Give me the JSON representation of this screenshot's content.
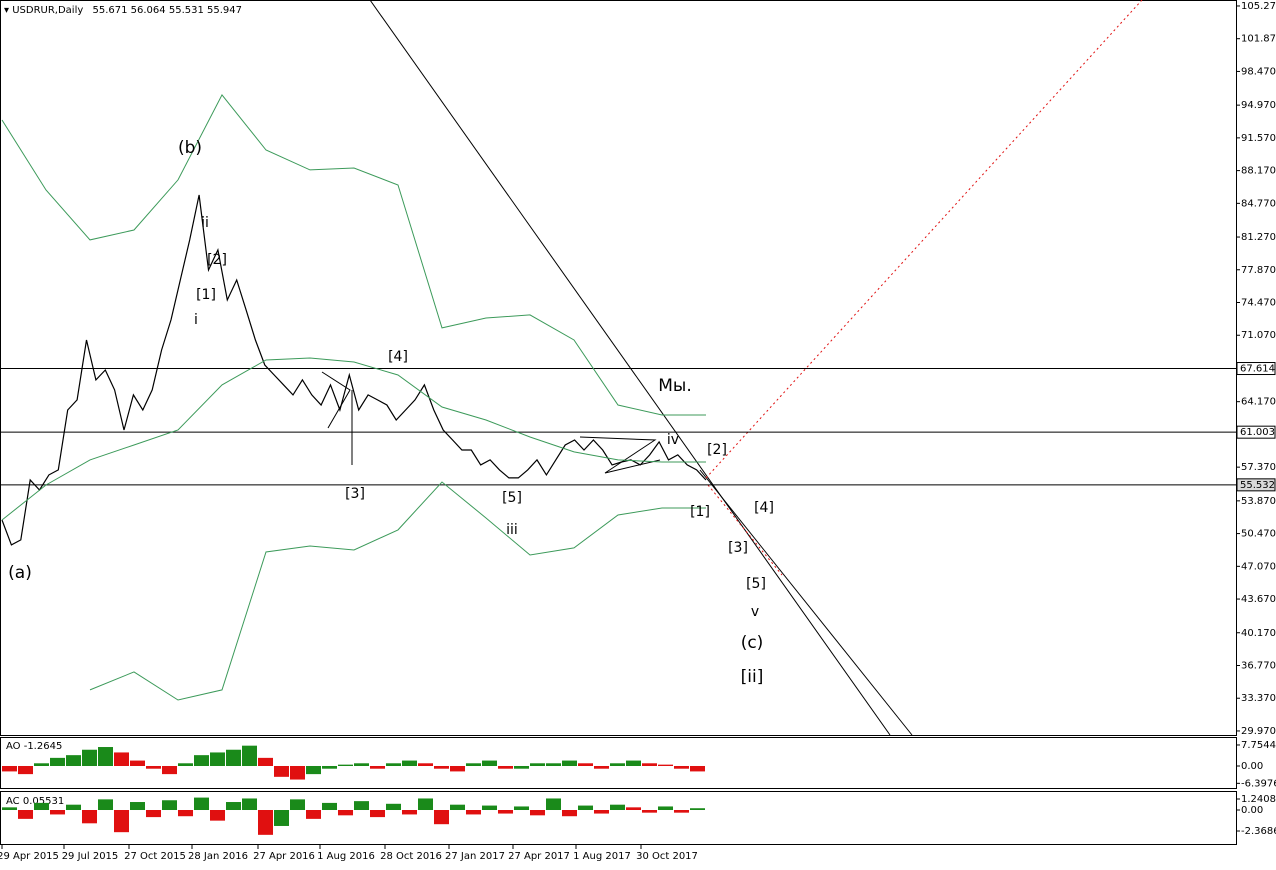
{
  "chart_data": [
    {
      "type": "line",
      "title": "USDRUR,Daily",
      "ohlc": [
        55.671,
        56.064,
        55.531,
        55.947
      ],
      "ylim": [
        29.55,
        105.89
      ],
      "yticks": [
        {
          "value": 105.27,
          "label": "105.270"
        },
        {
          "value": 101.87,
          "label": "101.870"
        },
        {
          "value": 98.47,
          "label": "98.470"
        },
        {
          "value": 94.97,
          "label": "94.970"
        },
        {
          "value": 91.57,
          "label": "91.570"
        },
        {
          "value": 88.17,
          "label": "88.170"
        },
        {
          "value": 84.77,
          "label": "84.770"
        },
        {
          "value": 81.27,
          "label": "81.270"
        },
        {
          "value": 77.87,
          "label": "77.870"
        },
        {
          "value": 74.47,
          "label": "74.470"
        },
        {
          "value": 71.07,
          "label": "71.070"
        },
        {
          "value": 64.17,
          "label": "64.170"
        },
        {
          "value": 57.37,
          "label": "57.370"
        },
        {
          "value": 53.87,
          "label": "53.870"
        },
        {
          "value": 50.47,
          "label": "50.470"
        },
        {
          "value": 47.07,
          "label": "47.070"
        },
        {
          "value": 43.67,
          "label": "43.670"
        },
        {
          "value": 40.17,
          "label": "40.170"
        },
        {
          "value": 36.77,
          "label": "36.770"
        },
        {
          "value": 33.37,
          "label": "33.370"
        },
        {
          "value": 29.97,
          "label": "29.970"
        }
      ],
      "hlines": [
        67.614,
        61.003,
        55.532
      ],
      "x_labels": [
        "29 Apr 2015",
        "29 Jul 2015",
        "27 Oct 2015",
        "28 Jan 2016",
        "27 Apr 2016",
        "1 Aug 2016",
        "28 Oct 2016",
        "27 Jan 2017",
        "27 Apr 2017",
        "1 Aug 2017",
        "30 Oct 2017"
      ],
      "series": [
        {
          "color": "#000000",
          "values": [
            51.88,
            49.29,
            49.81,
            56.04,
            55.0,
            56.56,
            57.08,
            63.31,
            64.35,
            70.58,
            66.43,
            67.46,
            65.39,
            61.23,
            64.87,
            63.31,
            65.39,
            69.54,
            72.66,
            76.81,
            80.97,
            85.64,
            77.85,
            79.93,
            74.73,
            76.81,
            73.7,
            70.58,
            67.98,
            66.94,
            65.91,
            64.87,
            66.43,
            64.87,
            63.83,
            65.91,
            63.31,
            66.94,
            63.31,
            64.87,
            64.35,
            63.83,
            62.27,
            63.31,
            64.35,
            65.91,
            63.31,
            61.23,
            60.19,
            59.15,
            59.15,
            57.6,
            58.12,
            57.08,
            56.25,
            56.25,
            57.08,
            58.12,
            56.56,
            58.12,
            59.67,
            60.19,
            59.15,
            60.19,
            59.15,
            57.6,
            57.91,
            58.12,
            57.6,
            58.64,
            59.99,
            58.12,
            58.64,
            57.6,
            57.08,
            56.04
          ]
        },
        {
          "color": "#3c9a5a",
          "values": [
            93.43,
            86.16,
            80.97,
            82.0,
            87.2,
            96.03,
            90.31,
            88.24,
            88.44,
            86.68,
            71.83,
            72.86,
            73.18,
            70.58,
            63.83,
            62.79,
            62.79
          ]
        },
        {
          "color": "#3c9a5a",
          "values": [
            51.88,
            55.52,
            58.12,
            59.67,
            61.23,
            65.91,
            68.5,
            68.71,
            68.29,
            66.94,
            63.62,
            62.27,
            60.5,
            58.95,
            58.12,
            57.91,
            57.91
          ]
        },
        {
          "color": "#3c9a5a",
          "values": [
            null,
            null,
            34.23,
            36.1,
            33.19,
            34.23,
            48.56,
            49.18,
            48.77,
            50.85,
            55.83,
            52.09,
            48.25,
            48.98,
            52.4,
            53.13,
            53.13
          ]
        }
      ],
      "annotations": [
        {
          "text": "(b)",
          "color": "#1a8a1a"
        },
        {
          "text": "ii",
          "color": "#1010c0"
        },
        {
          "text": "[2]",
          "color": "#e01010"
        },
        {
          "text": "[1]",
          "color": "#e01010"
        },
        {
          "text": "i",
          "color": "#1010c0"
        },
        {
          "text": "[4]",
          "color": "#e01010"
        },
        {
          "text": "[3]",
          "color": "#e01010"
        },
        {
          "text": "[5]",
          "color": "#e01010"
        },
        {
          "text": "iii",
          "color": "#1010c0"
        },
        {
          "text": "(a)",
          "color": "#1a8a1a"
        },
        {
          "text": "Мы.",
          "color": "#000000"
        },
        {
          "text": "iv",
          "color": "#1010c0"
        },
        {
          "text": "[2]",
          "color": "#e01010"
        },
        {
          "text": "[1]",
          "color": "#e01010"
        },
        {
          "text": "[4]",
          "color": "#e01010"
        },
        {
          "text": "[3]",
          "color": "#e01010"
        },
        {
          "text": "[5]",
          "color": "#e01010"
        },
        {
          "text": "v",
          "color": "#1010c0"
        },
        {
          "text": "(c)",
          "color": "#1a8a1a"
        },
        {
          "text": "[ii]",
          "color": "#e01010"
        }
      ]
    },
    {
      "type": "bar",
      "title": "AO -1.2645",
      "up_color": "#1a8a1a",
      "down_color": "#e01010",
      "ylim": [
        -8.12,
        10.33
      ],
      "yticks": [
        7.7544,
        {
          "value": 0,
          "label": "0.00"
        },
        -6.3976
      ],
      "values": [
        -2,
        -3,
        1,
        3,
        4,
        6,
        7,
        5,
        2,
        -1,
        -3,
        1,
        4,
        5,
        6,
        7.5,
        3,
        -4,
        -5,
        -3,
        -1,
        0.5,
        1,
        -1,
        1,
        2,
        1,
        -1,
        -2,
        1,
        2,
        -1,
        -1,
        1,
        1,
        2,
        1,
        -1,
        1,
        2,
        1,
        0.5,
        -1,
        -2
      ]
    },
    {
      "type": "bar",
      "title": "AC 0.05531",
      "up_color": "#1a8a1a",
      "down_color": "#e01010",
      "ylim": [
        -3.72,
        2.03
      ],
      "yticks": [
        1.24086,
        {
          "value": 0,
          "label": "0.00"
        },
        -2.36862
      ],
      "values": [
        0.3,
        -1,
        0.8,
        -0.5,
        0.6,
        -1.5,
        1.2,
        -2.5,
        0.9,
        -0.8,
        1.1,
        -0.7,
        1.4,
        -1.2,
        0.9,
        1.3,
        -2.8,
        -1.8,
        1.2,
        -1,
        0.8,
        -0.6,
        1,
        -0.8,
        0.7,
        -0.5,
        1.3,
        -1.6,
        0.6,
        -0.5,
        0.5,
        -0.4,
        0.4,
        -0.6,
        1.3,
        -0.7,
        0.5,
        -0.4,
        0.6,
        0.3,
        -0.3,
        0.4,
        -0.3,
        0.2
      ]
    }
  ]
}
